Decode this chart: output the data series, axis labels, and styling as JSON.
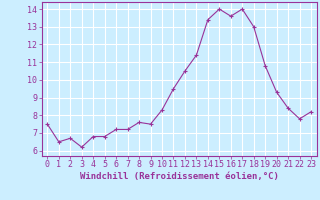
{
  "x": [
    0,
    1,
    2,
    3,
    4,
    5,
    6,
    7,
    8,
    9,
    10,
    11,
    12,
    13,
    14,
    15,
    16,
    17,
    18,
    19,
    20,
    21,
    22,
    23
  ],
  "y": [
    7.5,
    6.5,
    6.7,
    6.2,
    6.8,
    6.8,
    7.2,
    7.2,
    7.6,
    7.5,
    8.3,
    9.5,
    10.5,
    11.4,
    13.4,
    14.0,
    13.6,
    14.0,
    13.0,
    10.8,
    9.3,
    8.4,
    7.8,
    8.2
  ],
  "line_color": "#993399",
  "marker": "+",
  "marker_size": 3,
  "background_color": "#cceeff",
  "grid_color": "#ffffff",
  "xlabel": "Windchill (Refroidissement éolien,°C)",
  "xlim": [
    -0.5,
    23.5
  ],
  "ylim": [
    5.7,
    14.4
  ],
  "yticks": [
    6,
    7,
    8,
    9,
    10,
    11,
    12,
    13,
    14
  ],
  "xticks": [
    0,
    1,
    2,
    3,
    4,
    5,
    6,
    7,
    8,
    9,
    10,
    11,
    12,
    13,
    14,
    15,
    16,
    17,
    18,
    19,
    20,
    21,
    22,
    23
  ],
  "xtick_labels": [
    "0",
    "1",
    "2",
    "3",
    "4",
    "5",
    "6",
    "7",
    "8",
    "9",
    "10",
    "11",
    "12",
    "13",
    "14",
    "15",
    "16",
    "17",
    "18",
    "19",
    "20",
    "21",
    "22",
    "23"
  ],
  "xlabel_fontsize": 6.5,
  "tick_fontsize": 6,
  "spine_color": "#993399",
  "linewidth": 0.8,
  "markeredgewidth": 0.8
}
